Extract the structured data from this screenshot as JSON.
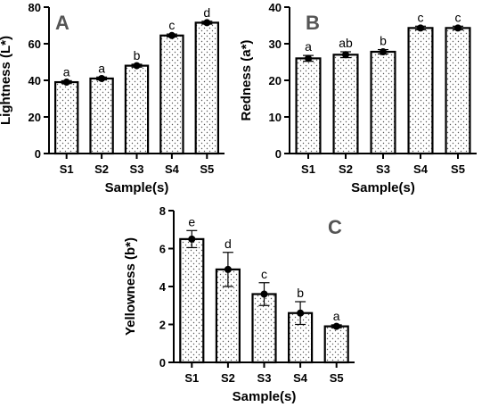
{
  "chart_data": [
    {
      "panel_label": "A",
      "type": "bar",
      "xlabel": "Sample(s)",
      "ylabel": "Lightness (L*)",
      "categories": [
        "S1",
        "S2",
        "S3",
        "S4",
        "S5"
      ],
      "values": [
        39,
        41,
        48,
        64.5,
        71.5
      ],
      "errors": [
        0.8,
        0.8,
        0.8,
        0.8,
        0.8
      ],
      "significance": [
        "a",
        "a",
        "b",
        "c",
        "d"
      ],
      "ylim": [
        0,
        80
      ],
      "yticks": [
        0,
        20,
        40,
        60,
        80
      ],
      "grid": false
    },
    {
      "panel_label": "B",
      "type": "bar",
      "xlabel": "Sample(s)",
      "ylabel": "Redness (a*)",
      "categories": [
        "S1",
        "S2",
        "S3",
        "S4",
        "S5"
      ],
      "values": [
        26,
        27,
        27.8,
        34.3,
        34.3
      ],
      "errors": [
        0.8,
        0.8,
        0.6,
        0.5,
        0.5
      ],
      "significance": [
        "a",
        "ab",
        "b",
        "c",
        "c"
      ],
      "ylim": [
        0,
        40
      ],
      "yticks": [
        0,
        10,
        20,
        30,
        40
      ],
      "grid": false
    },
    {
      "panel_label": "C",
      "type": "bar",
      "xlabel": "Sample(s)",
      "ylabel": "Yellowness (b*)",
      "categories": [
        "S1",
        "S2",
        "S3",
        "S4",
        "S5"
      ],
      "values": [
        6.5,
        4.9,
        3.6,
        2.6,
        1.9
      ],
      "errors": [
        0.45,
        0.9,
        0.6,
        0.6,
        0.08
      ],
      "significance": [
        "e",
        "d",
        "c",
        "b",
        "a"
      ],
      "ylim": [
        0,
        8
      ],
      "yticks": [
        0,
        2,
        4,
        6,
        8
      ],
      "grid": false
    }
  ],
  "colors": {
    "bar_fill": "#ffffff",
    "bar_stroke": "#000000",
    "stipple": "#555555",
    "panel_letter": "#555555"
  }
}
